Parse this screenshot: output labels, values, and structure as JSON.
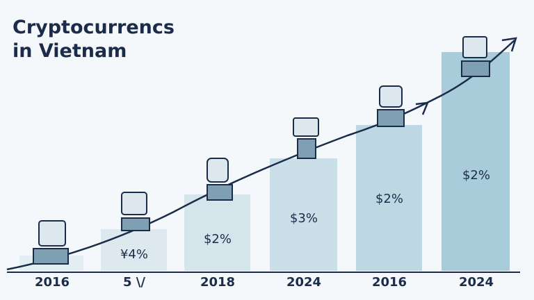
{
  "title": [
    "Cryptocurrencs",
    "in Vietnam"
  ],
  "columns": [
    {
      "year": "2016"
    },
    {
      "year": "5 \\/",
      "tag": "¥4%"
    },
    {
      "year": "2018",
      "tag": "$2%"
    },
    {
      "year": "2024",
      "tag": "$3%"
    },
    {
      "year": "2016",
      "tag": "$2%"
    },
    {
      "year": "2024",
      "tag": "$2%"
    }
  ]
}
